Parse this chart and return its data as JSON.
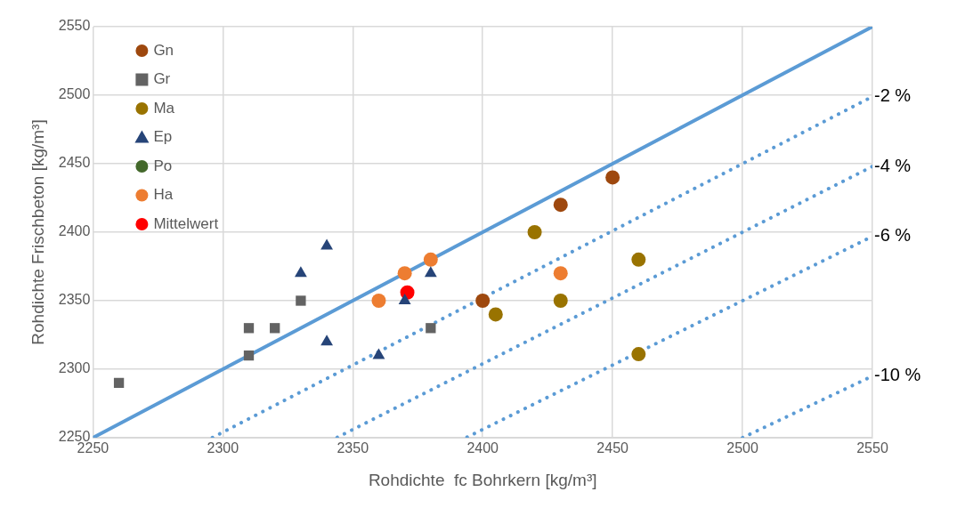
{
  "chart_data": {
    "type": "scatter",
    "xlabel": "Rohdichte  fc Bohrkern [kg/m³]",
    "ylabel": "Rohdichte Frischbeton [kg/m³]",
    "xlim": [
      2250,
      2550
    ],
    "xticks": [
      2250,
      2300,
      2350,
      2400,
      2450,
      2500,
      2550
    ],
    "ylim": [
      2250,
      2550
    ],
    "yticks": [
      2250,
      2300,
      2350,
      2400,
      2450,
      2500,
      2550
    ],
    "grid": true,
    "legend": "top left",
    "series": [
      {
        "name": "Gn",
        "color": "#9e480e",
        "marker": "circle",
        "x": [
          2400,
          2430,
          2450
        ],
        "values": [
          2350,
          2420,
          2440
        ]
      },
      {
        "name": "Gr",
        "color": "#636363",
        "marker": "square",
        "x": [
          2260,
          2310,
          2320,
          2310,
          2330,
          2380
        ],
        "values": [
          2290,
          2330,
          2330,
          2310,
          2350,
          2330
        ]
      },
      {
        "name": "Ma",
        "color": "#997300",
        "marker": "circle",
        "x": [
          2420,
          2460,
          2430,
          2405,
          2460
        ],
        "values": [
          2400,
          2380,
          2350,
          2340,
          2311
        ]
      },
      {
        "name": "Ep",
        "color": "#264478",
        "marker": "triangle",
        "x": [
          2340,
          2330,
          2380,
          2370,
          2340,
          2360
        ],
        "values": [
          2390,
          2370,
          2370,
          2350,
          2320,
          2310
        ]
      },
      {
        "name": "Po",
        "color": "#43682b",
        "marker": "circle"
      },
      {
        "name": "Ha",
        "color": "#ed7d31",
        "marker": "circle",
        "x": [
          2380,
          2370,
          2360,
          2430
        ],
        "values": [
          2380,
          2370,
          2350,
          2370
        ]
      },
      {
        "name": "Mittelwert",
        "color": "#ff0000",
        "marker": "circle",
        "x": [
          2371
        ],
        "values": [
          2356
        ]
      },
      {
        "type": "line",
        "color": "#5b9bd5",
        "line_style": "solid",
        "marker": "none",
        "x": [
          2250,
          2550
        ],
        "values": [
          2250,
          2550
        ]
      },
      {
        "type": "line",
        "name": "-2 %",
        "color": "#5b9bd5",
        "line_style": "dotted",
        "marker": "none",
        "x": [
          2296,
          2550
        ],
        "values": [
          2250.1,
          2499
        ]
      },
      {
        "type": "line",
        "name": "-4 %",
        "color": "#5b9bd5",
        "line_style": "dotted",
        "marker": "none",
        "x": [
          2344,
          2550
        ],
        "values": [
          2250.2,
          2448
        ]
      },
      {
        "type": "line",
        "name": "-6 %",
        "color": "#5b9bd5",
        "line_style": "dotted",
        "marker": "none",
        "x": [
          2394,
          2550
        ],
        "values": [
          2250.4,
          2397
        ]
      },
      {
        "type": "line",
        "name": "-10 %",
        "color": "#5b9bd5",
        "line_style": "dotted",
        "marker": "none",
        "x": [
          2500,
          2550
        ],
        "values": [
          2250,
          2295
        ]
      }
    ]
  }
}
